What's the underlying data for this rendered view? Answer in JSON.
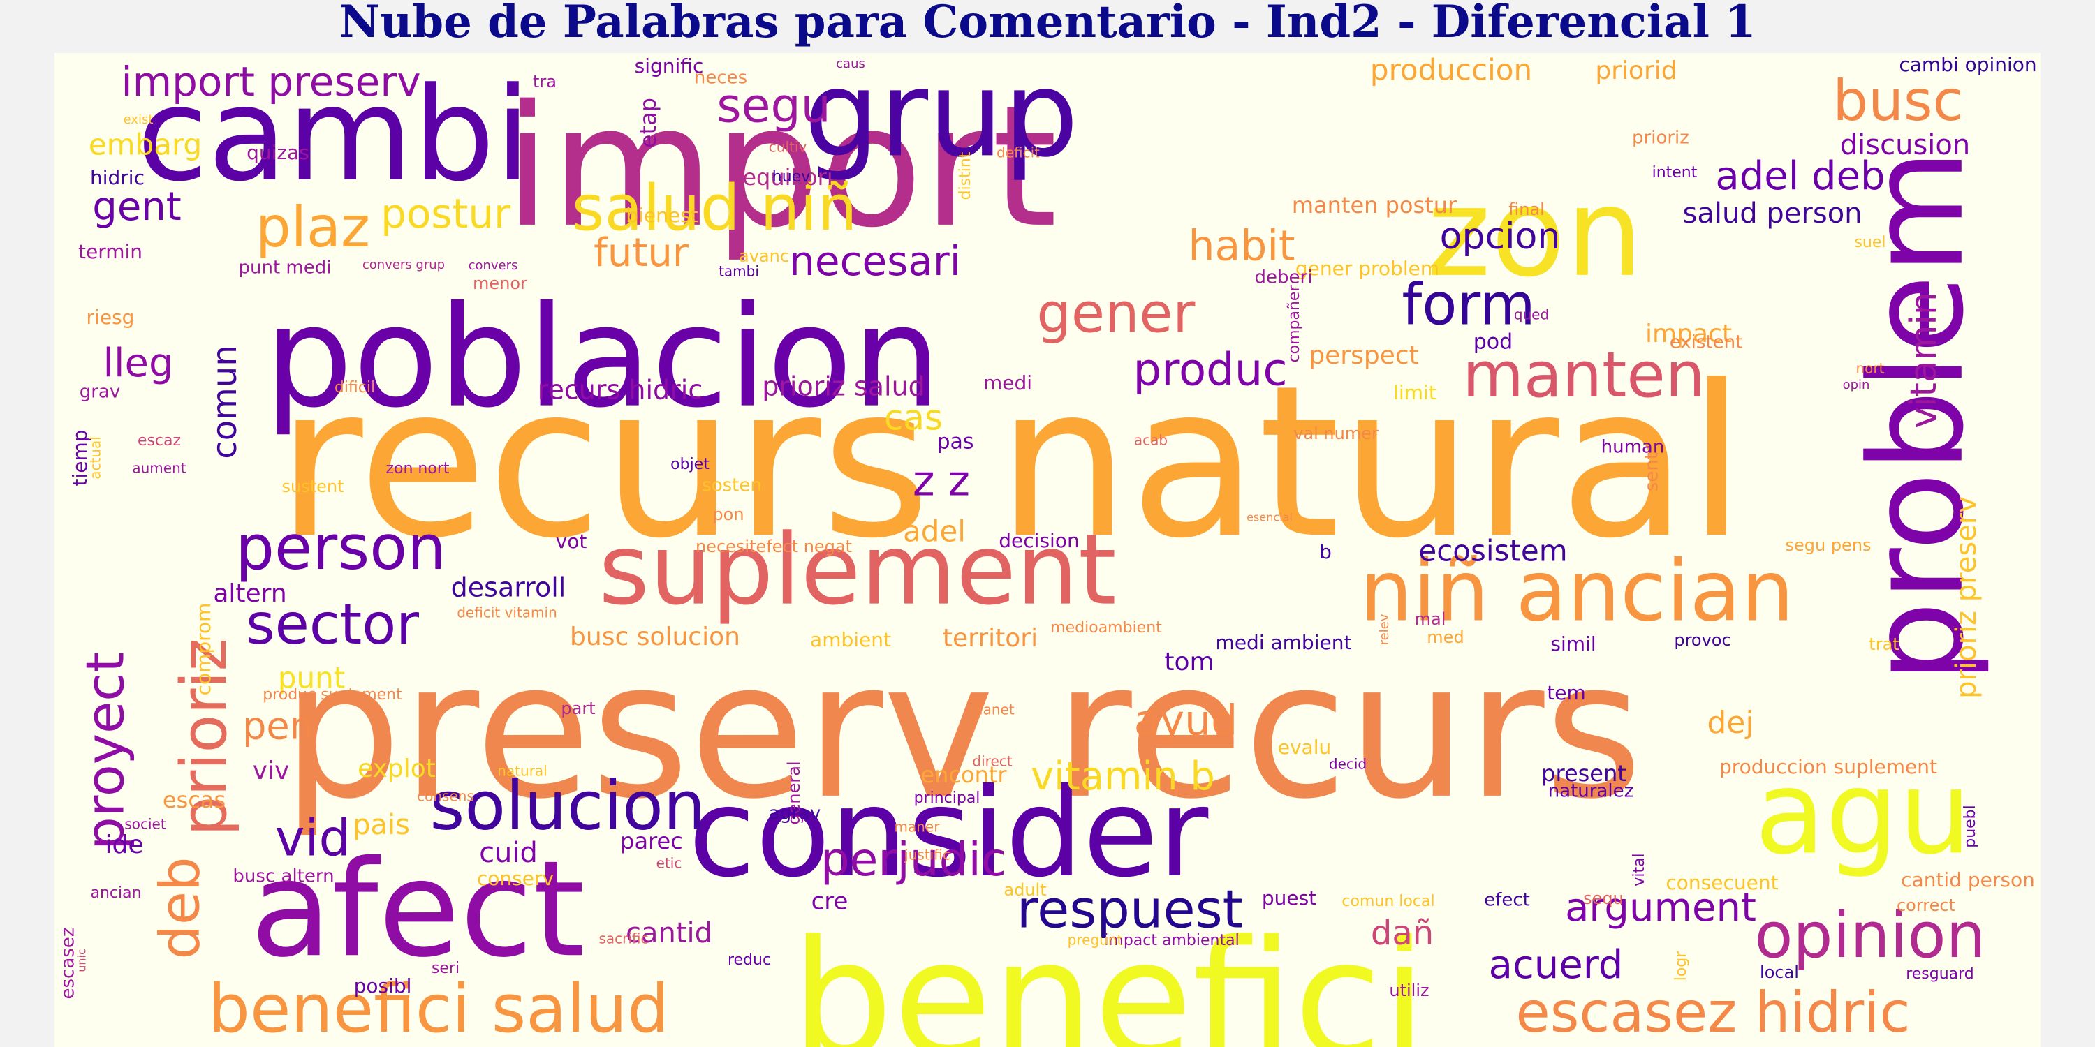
{
  "title": "Nube de Palabras para Comentario - Ind2 - Diferencial 1",
  "colors": {
    "background": "#fffff0",
    "page": "#f2f2f2",
    "title": "#0a0a8a"
  },
  "words": [
    {
      "t": "recurs natural",
      "c": "#fca636"
    },
    {
      "t": "preserv recurs",
      "c": "#f0874f"
    },
    {
      "t": "import",
      "c": "#b42e8b"
    },
    {
      "t": "poblacion",
      "c": "#6a00a8"
    },
    {
      "t": "benefici",
      "c": "#f0f921"
    },
    {
      "t": "cambi",
      "c": "#5c01a6"
    },
    {
      "t": "grup",
      "c": "#4b03a1"
    },
    {
      "t": "afect",
      "c": "#8f0da4"
    },
    {
      "t": "consider",
      "c": "#5c01a6"
    },
    {
      "t": "problem",
      "c": "#7e03a8"
    },
    {
      "t": "suplement",
      "c": "#e16462"
    },
    {
      "t": "zon",
      "c": "#f7e225"
    },
    {
      "t": "agu",
      "c": "#f0f921"
    },
    {
      "t": "niñ ancian",
      "c": "#f89540"
    },
    {
      "t": "benefici salud",
      "c": "#f89540"
    },
    {
      "t": "escasez hidric",
      "c": "#f48849"
    },
    {
      "t": "prioriz",
      "c": "#e56b5d"
    },
    {
      "t": "solucion",
      "c": "#41049d"
    },
    {
      "t": "person",
      "c": "#6a00a8"
    },
    {
      "t": "salud niñ",
      "c": "#f9d923"
    },
    {
      "t": "manten",
      "c": "#d8576b"
    },
    {
      "t": "opinion",
      "c": "#b12a90"
    },
    {
      "t": "sector",
      "c": "#5c01a6"
    },
    {
      "t": "respuest",
      "c": "#24068f"
    },
    {
      "t": "deb",
      "c": "#f48849"
    },
    {
      "t": "proyect",
      "c": "#8f0da4"
    },
    {
      "t": "form",
      "c": "#350498"
    },
    {
      "t": "busc",
      "c": "#f48849"
    },
    {
      "t": "plaz",
      "c": "#fca636"
    },
    {
      "t": "gener",
      "c": "#e16462"
    },
    {
      "t": "vid",
      "c": "#5c01a6"
    },
    {
      "t": "perjudic",
      "c": "#8f0da4"
    },
    {
      "t": "produc",
      "c": "#7e03a8"
    },
    {
      "t": "segu",
      "c": "#9c179e"
    },
    {
      "t": "vitamin b",
      "c": "#f9d923"
    },
    {
      "t": "acuerd",
      "c": "#5c01a6"
    },
    {
      "t": "argument",
      "c": "#7e03a8"
    },
    {
      "t": "adel deb",
      "c": "#6a00a8"
    },
    {
      "t": "vitamin",
      "c": "#9c179e"
    },
    {
      "t": "ayud",
      "c": "#f48849"
    },
    {
      "t": "habit",
      "c": "#f89540"
    },
    {
      "t": "necesari",
      "c": "#7e03a8"
    },
    {
      "t": "import preserv",
      "c": "#8f0da4"
    },
    {
      "t": "postur",
      "c": "#f9d923"
    },
    {
      "t": "futur",
      "c": "#f89540"
    },
    {
      "t": "opcion",
      "c": "#41049d"
    },
    {
      "t": "pen",
      "c": "#f48849"
    },
    {
      "t": "lleg",
      "c": "#8f0da4"
    },
    {
      "t": "gent",
      "c": "#6a00a8"
    },
    {
      "t": "z z",
      "c": "#7e03a8"
    },
    {
      "t": "cas",
      "c": "#f9d923"
    },
    {
      "t": "produccion",
      "c": "#fca636"
    },
    {
      "t": "embarg",
      "c": "#f9d923"
    },
    {
      "t": "comun",
      "c": "#41049d"
    },
    {
      "t": "dañ",
      "c": "#cc4778"
    },
    {
      "t": "dej",
      "c": "#fca636"
    },
    {
      "t": "ecosistem",
      "c": "#41049d"
    },
    {
      "t": "discusion",
      "c": "#7e03a8"
    },
    {
      "t": "cuid",
      "c": "#7e03a8"
    },
    {
      "t": "adel",
      "c": "#fca636"
    },
    {
      "t": "cantid",
      "c": "#9c179e"
    },
    {
      "t": "priorid",
      "c": "#fca636"
    },
    {
      "t": "salud person",
      "c": "#41049d"
    },
    {
      "t": "prioriz salud",
      "c": "#9c179e"
    },
    {
      "t": "recurs hidric",
      "c": "#8f0da4"
    },
    {
      "t": "desarroll",
      "c": "#41049d"
    },
    {
      "t": "explot",
      "c": "#f9d923"
    },
    {
      "t": "punt",
      "c": "#f7e225"
    },
    {
      "t": "altern",
      "c": "#7e03a8"
    },
    {
      "t": "busc solucion",
      "c": "#f89540"
    },
    {
      "t": "territori",
      "c": "#f89540"
    },
    {
      "t": "perspect",
      "c": "#f89540"
    },
    {
      "t": "impact",
      "c": "#fca636"
    },
    {
      "t": "manten postur",
      "c": "#f48849"
    },
    {
      "t": "ide",
      "c": "#6a00a8"
    },
    {
      "t": "pais",
      "c": "#fdc328"
    },
    {
      "t": "viv",
      "c": "#9c179e"
    },
    {
      "t": "escas",
      "c": "#f89540"
    },
    {
      "t": "parec",
      "c": "#7e03a8"
    },
    {
      "t": "cre",
      "c": "#7e03a8"
    },
    {
      "t": "tom",
      "c": "#5c01a6"
    },
    {
      "t": "encontr",
      "c": "#fca636"
    },
    {
      "t": "present",
      "c": "#41049d"
    },
    {
      "t": "produccion suplement",
      "c": "#f48849"
    },
    {
      "t": "equilibri",
      "c": "#b12a90"
    },
    {
      "t": "cambi opinion",
      "c": "#350498"
    },
    {
      "t": "medi ambient",
      "c": "#41049d"
    },
    {
      "t": "consecuent",
      "c": "#fdc328"
    },
    {
      "t": "cantid person",
      "c": "#f48849"
    },
    {
      "t": "bienest",
      "c": "#fdc328"
    },
    {
      "t": "signific",
      "c": "#7e03a8"
    },
    {
      "t": "etap",
      "c": "#8f0da4"
    },
    {
      "t": "hidric",
      "c": "#41049d"
    },
    {
      "t": "termin",
      "c": "#9c179e"
    },
    {
      "t": "riesg",
      "c": "#f89540"
    },
    {
      "t": "grav",
      "c": "#9c179e"
    },
    {
      "t": "tiemp",
      "c": "#6a00a8"
    },
    {
      "t": "actual",
      "c": "#fdc328"
    },
    {
      "t": "escaz",
      "c": "#cc4778"
    },
    {
      "t": "aument",
      "c": "#9c179e"
    },
    {
      "t": "sustent",
      "c": "#fdc328"
    },
    {
      "t": "zon nort",
      "c": "#9c179e"
    },
    {
      "t": "objet",
      "c": "#5c01a6"
    },
    {
      "t": "sosten",
      "c": "#fdc328"
    },
    {
      "t": "pon",
      "c": "#f48849"
    },
    {
      "t": "vot",
      "c": "#7e03a8"
    },
    {
      "t": "necesitefect negat",
      "c": "#f48849"
    },
    {
      "t": "decision",
      "c": "#7e03a8"
    },
    {
      "t": "b",
      "c": "#41049d"
    },
    {
      "t": "segu pens",
      "c": "#fca636"
    },
    {
      "t": "prioriz preserv",
      "c": "#fdc328"
    },
    {
      "t": "human",
      "c": "#7e03a8"
    },
    {
      "t": "sent",
      "c": "#f48849"
    },
    {
      "t": "mal",
      "c": "#b12a90"
    },
    {
      "t": "med",
      "c": "#fca636"
    },
    {
      "t": "simil",
      "c": "#6a00a8"
    },
    {
      "t": "provoc",
      "c": "#41049d"
    },
    {
      "t": "trat",
      "c": "#fdc328"
    },
    {
      "t": "tem",
      "c": "#6a00a8"
    },
    {
      "t": "evalu",
      "c": "#fdc328"
    },
    {
      "t": "decid",
      "c": "#7e03a8"
    },
    {
      "t": "naturalez",
      "c": "#5c01a6"
    },
    {
      "t": "puebl",
      "c": "#6a00a8"
    },
    {
      "t": "correct",
      "c": "#f48849"
    },
    {
      "t": "sequ",
      "c": "#e16462"
    },
    {
      "t": "local",
      "c": "#41049d"
    },
    {
      "t": "resguard",
      "c": "#7e03a8"
    },
    {
      "t": "logr",
      "c": "#fdc328"
    },
    {
      "t": "utiliz",
      "c": "#9c179e"
    },
    {
      "t": "efect",
      "c": "#41049d"
    },
    {
      "t": "comun local",
      "c": "#fdc328"
    },
    {
      "t": "puest",
      "c": "#7e03a8"
    },
    {
      "t": "impact ambiental",
      "c": "#8f0da4"
    },
    {
      "t": "pregunt",
      "c": "#fdc328"
    },
    {
      "t": "adult",
      "c": "#fdc328"
    },
    {
      "t": "etic",
      "c": "#cc4778"
    },
    {
      "t": "sacrific",
      "c": "#e16462"
    },
    {
      "t": "reduc",
      "c": "#6a00a8"
    },
    {
      "t": "seri",
      "c": "#9c179e"
    },
    {
      "t": "posibl",
      "c": "#6a00a8"
    },
    {
      "t": "escasez",
      "c": "#9c179e"
    },
    {
      "t": "unic",
      "c": "#cc4778"
    },
    {
      "t": "ancian",
      "c": "#9c179e"
    },
    {
      "t": "busc altern",
      "c": "#9c179e"
    },
    {
      "t": "societ",
      "c": "#9c179e"
    },
    {
      "t": "consens",
      "c": "#f48849"
    },
    {
      "t": "natural",
      "c": "#fdc328"
    },
    {
      "t": "part",
      "c": "#b12a90"
    },
    {
      "t": "general",
      "c": "#9c179e"
    },
    {
      "t": "planet",
      "c": "#f48849"
    },
    {
      "t": "direct",
      "c": "#e16462"
    },
    {
      "t": "principal",
      "c": "#7e03a8"
    },
    {
      "t": "justific",
      "c": "#f48849"
    },
    {
      "t": "maner",
      "c": "#f48849"
    },
    {
      "t": "agrav",
      "c": "#41049d"
    },
    {
      "t": "produc suplement",
      "c": "#f0874f"
    },
    {
      "t": "comprom",
      "c": "#fdc328"
    },
    {
      "t": "medioambient",
      "c": "#f48849"
    },
    {
      "t": "ambient",
      "c": "#fdc328"
    },
    {
      "t": "deficit vitamin",
      "c": "#f48849"
    },
    {
      "t": "relev",
      "c": "#f48849"
    },
    {
      "t": "acab",
      "c": "#e16462"
    },
    {
      "t": "esencial",
      "c": "#f48849"
    },
    {
      "t": "pas",
      "c": "#6a00a8"
    },
    {
      "t": "val numer",
      "c": "#f48849"
    },
    {
      "t": "limit",
      "c": "#f9d923"
    },
    {
      "t": "pod",
      "c": "#5c01a6"
    },
    {
      "t": "qued",
      "c": "#9c179e"
    },
    {
      "t": "existent",
      "c": "#f48849"
    },
    {
      "t": "nort",
      "c": "#f48849"
    },
    {
      "t": "opin",
      "c": "#9c179e"
    },
    {
      "t": "suel",
      "c": "#fdc328"
    },
    {
      "t": "compañer",
      "c": "#9c179e"
    },
    {
      "t": "gener problem",
      "c": "#fdc328"
    },
    {
      "t": "deberi",
      "c": "#9c179e"
    },
    {
      "t": "final",
      "c": "#f48849"
    },
    {
      "t": "intent",
      "c": "#6a00a8"
    },
    {
      "t": "prioriz",
      "c": "#f48849"
    },
    {
      "t": "distint",
      "c": "#fdc328"
    },
    {
      "t": "deficit",
      "c": "#f48849"
    },
    {
      "t": "cultiv",
      "c": "#e16462"
    },
    {
      "t": "huev",
      "c": "#41049d"
    },
    {
      "t": "neces",
      "c": "#f48849"
    },
    {
      "t": "caus",
      "c": "#9c179e"
    },
    {
      "t": "tra",
      "c": "#9c179e"
    },
    {
      "t": "quizas",
      "c": "#9c179e"
    },
    {
      "t": "exist",
      "c": "#fdc328"
    },
    {
      "t": "convers",
      "c": "#9c179e"
    },
    {
      "t": "convers grup",
      "c": "#b12a90"
    },
    {
      "t": "tambi",
      "c": "#5c01a6"
    },
    {
      "t": "avanc",
      "c": "#fdc328"
    },
    {
      "t": "menor",
      "c": "#e16462"
    },
    {
      "t": "punt medi",
      "c": "#9c179e"
    },
    {
      "t": "medi",
      "c": "#9c179e"
    },
    {
      "t": "dificil",
      "c": "#f48849"
    },
    {
      "t": "vital",
      "c": "#7e03a8"
    },
    {
      "t": "conserv",
      "c": "#fdc328"
    }
  ]
}
